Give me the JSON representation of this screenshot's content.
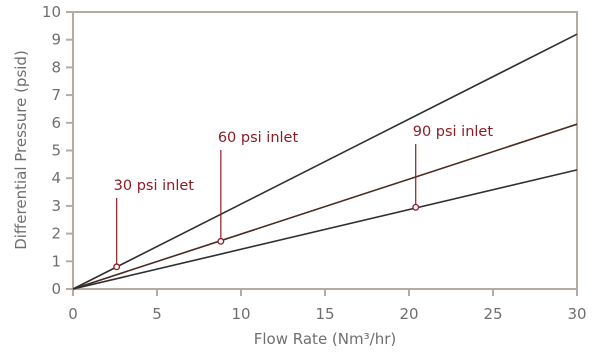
{
  "chart_data": {
    "type": "line",
    "title": "",
    "xlabel": "Flow Rate (Nm³/hr)",
    "ylabel": "Differential Pressure (psid)",
    "xlim": [
      0,
      30
    ],
    "ylim": [
      0,
      10
    ],
    "x_ticks": [
      "0",
      "5",
      "10",
      "15",
      "20",
      "25",
      "30"
    ],
    "y_ticks": [
      "0",
      "1",
      "2",
      "3",
      "4",
      "5",
      "6",
      "7",
      "8",
      "9",
      "10"
    ],
    "grid": false,
    "legend": "none",
    "series": [
      {
        "name": "30 psi inlet",
        "x": [
          0,
          30
        ],
        "y": [
          0,
          9.2
        ]
      },
      {
        "name": "60 psi inlet",
        "x": [
          0,
          30
        ],
        "y": [
          0,
          5.95
        ]
      },
      {
        "name": "90 psi inlet",
        "x": [
          0,
          30
        ],
        "y": [
          0,
          4.3
        ]
      }
    ],
    "annotations": [
      {
        "text": "30 psi inlet",
        "x": 2.6,
        "y": 0.8
      },
      {
        "text": "60 psi inlet",
        "x": 8.8,
        "y": 1.72
      },
      {
        "text": "90 psi inlet",
        "x": 20.4,
        "y": 2.95
      }
    ],
    "colors": {
      "frame": "#b5aba3",
      "series": [
        "#2f2f2f",
        "#4a2a20",
        "#2f2f2f"
      ],
      "annotation": "#8e1b24",
      "tick_text": "#6f6f6f"
    }
  }
}
